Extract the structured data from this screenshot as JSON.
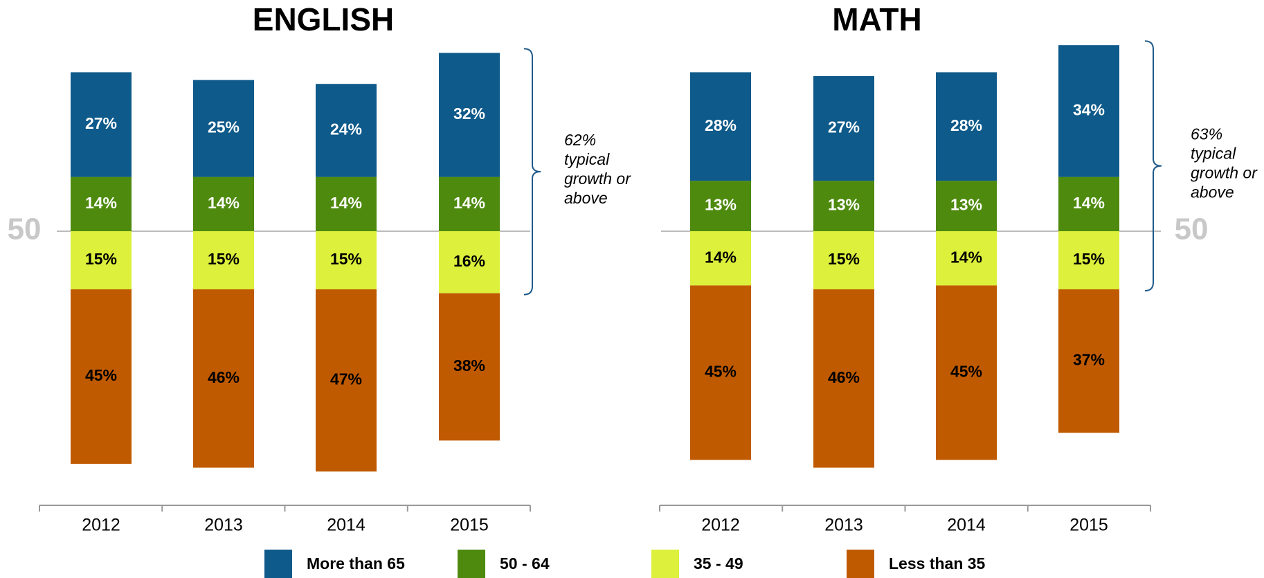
{
  "chart_data": [
    {
      "type": "diverging-stacked-bar",
      "title": "ENGLISH",
      "midline": 50,
      "categories": [
        "2012",
        "2013",
        "2014",
        "2015"
      ],
      "split": 2,
      "annotation": [
        "62%",
        "typical",
        "growth or",
        "above"
      ],
      "series": [
        {
          "name": "More than 65",
          "color": "#0e5a8a",
          "label_color": "#ffffff",
          "values": [
            27,
            25,
            24,
            32
          ],
          "value_labels": [
            "27%",
            "25%",
            "24%",
            "32%"
          ]
        },
        {
          "name": "50 - 64",
          "color": "#4e8a0e",
          "label_color": "#ffffff",
          "values": [
            14,
            14,
            14,
            14
          ],
          "value_labels": [
            "14%",
            "14%",
            "14%",
            "14%"
          ]
        },
        {
          "name": "35 - 49",
          "color": "#dcf03c",
          "label_color": "#000000",
          "values": [
            15,
            15,
            15,
            16
          ],
          "value_labels": [
            "15%",
            "15%",
            "15%",
            "16%"
          ]
        },
        {
          "name": "Less than 35",
          "color": "#c05a00",
          "label_color": "#000000",
          "values": [
            45,
            46,
            47,
            38
          ],
          "value_labels": [
            "45%",
            "46%",
            "47%",
            "38%"
          ]
        }
      ]
    },
    {
      "type": "diverging-stacked-bar",
      "title": "MATH",
      "midline": 50,
      "categories": [
        "2012",
        "2013",
        "2014",
        "2015"
      ],
      "split": 2,
      "annotation": [
        "63%",
        "typical",
        "growth or",
        "above"
      ],
      "series": [
        {
          "name": "More than 65",
          "color": "#0e5a8a",
          "label_color": "#ffffff",
          "values": [
            28,
            27,
            28,
            34
          ],
          "value_labels": [
            "28%",
            "27%",
            "28%",
            "34%"
          ]
        },
        {
          "name": "50 - 64",
          "color": "#4e8a0e",
          "label_color": "#ffffff",
          "values": [
            13,
            13,
            13,
            14
          ],
          "value_labels": [
            "13%",
            "13%",
            "13%",
            "14%"
          ]
        },
        {
          "name": "35 - 49",
          "color": "#dcf03c",
          "label_color": "#000000",
          "values": [
            14,
            15,
            14,
            15
          ],
          "value_labels": [
            "14%",
            "15%",
            "14%",
            "15%"
          ]
        },
        {
          "name": "Less than 35",
          "color": "#c05a00",
          "label_color": "#000000",
          "values": [
            45,
            46,
            45,
            37
          ],
          "value_labels": [
            "45%",
            "46%",
            "45%",
            "37%"
          ]
        }
      ]
    }
  ]
}
